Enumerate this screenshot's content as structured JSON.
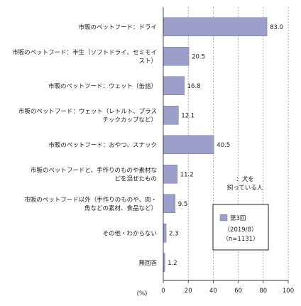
{
  "chart_data": {
    "type": "bar",
    "orientation": "horizontal",
    "categories": [
      [
        "市販のペットフード：ドライ"
      ],
      [
        "市販のペットフード：半生（ソフトドライ、セミモイ",
        "スト）"
      ],
      [
        "市販のペットフード：ウェット（缶詰）"
      ],
      [
        "市販のペットフード：ウェット（レトルト、プラス",
        "チックカップなど）"
      ],
      [
        "市販のペットフード：おやつ、スナック"
      ],
      [
        "市販のペットフードと、手作りのものや素材な",
        "どを混ぜたもの"
      ],
      [
        "市販のペットフード以外（手作りのものや、肉・",
        "魚などの素材、食品など）"
      ],
      [
        "その他・わからない"
      ],
      [
        "無回答"
      ]
    ],
    "value_labels": [
      "83.0",
      "20.5",
      "16.8",
      "12.1",
      "40.5",
      "11.2",
      "9.5",
      "2.3",
      "1.2"
    ],
    "series": [
      {
        "name": "第3回",
        "values": [
          83.0,
          20.5,
          16.8,
          12.1,
          40.5,
          11.2,
          9.5,
          2.3,
          1.2
        ]
      }
    ],
    "xlim": [
      0,
      100
    ],
    "xticks": [
      "0",
      "20",
      "40",
      "60",
      "80",
      "100"
    ],
    "xlabel": "(%)",
    "grid": "vertical dashed",
    "base_note": [
      "：犬を",
      "飼っている人"
    ],
    "legend": {
      "placement": "bottom-right inside",
      "entry": "第3回",
      "lines": [
        "（2019/8）",
        "（n=1131）"
      ]
    },
    "colors": {
      "bar": "#9b9fca",
      "bar_edge": "#6f73a8",
      "axis": "#333333",
      "grid": "#888888"
    }
  }
}
